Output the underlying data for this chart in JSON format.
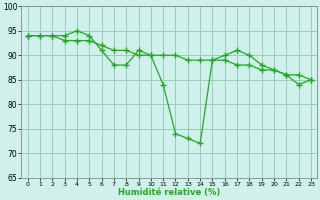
{
  "x_values": [
    0,
    1,
    2,
    3,
    4,
    5,
    6,
    7,
    8,
    9,
    10,
    11,
    12,
    13,
    14,
    15,
    16,
    17,
    18,
    19,
    20,
    21,
    22,
    23
  ],
  "series_jagged": [
    94,
    94,
    94,
    94,
    95,
    94,
    91,
    88,
    88,
    91,
    90,
    84,
    74,
    73,
    72,
    89,
    90,
    91,
    90,
    88,
    87,
    86,
    84,
    85
  ],
  "series_smooth": [
    94,
    94,
    94,
    93,
    93,
    93,
    92,
    91,
    91,
    90,
    90,
    90,
    90,
    89,
    89,
    89,
    89,
    88,
    88,
    87,
    87,
    86,
    86,
    85
  ],
  "series_extra": [
    null,
    null,
    null,
    null,
    null,
    null,
    null,
    null,
    null,
    null,
    null,
    null,
    null,
    null,
    null,
    90,
    90,
    null,
    null,
    null,
    null,
    null,
    null,
    null
  ],
  "ylim": [
    65,
    100
  ],
  "xlim": [
    -0.5,
    23.5
  ],
  "yticks": [
    65,
    70,
    75,
    80,
    85,
    90,
    95,
    100
  ],
  "xticks": [
    0,
    1,
    2,
    3,
    4,
    5,
    6,
    7,
    8,
    9,
    10,
    11,
    12,
    13,
    14,
    15,
    16,
    17,
    18,
    19,
    20,
    21,
    22,
    23
  ],
  "xlabel": "Humidité relative (%)",
  "line_color": "#22aa22",
  "bg_color": "#cff0eb",
  "grid_color": "#99ccbb",
  "marker": "+"
}
